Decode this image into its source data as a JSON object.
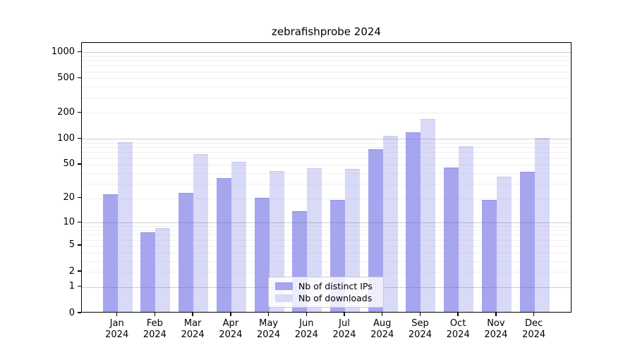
{
  "chart_data": {
    "type": "bar",
    "title": "zebrafishprobe 2024",
    "categories": [
      "Jan 2024",
      "Feb 2024",
      "Mar 2024",
      "Apr 2024",
      "May 2024",
      "Jun 2024",
      "Jul 2024",
      "Aug 2024",
      "Sep 2024",
      "Oct 2024",
      "Nov 2024",
      "Dec 2024"
    ],
    "series": [
      {
        "name": "Nb of distinct IPs",
        "color": "#a5a5f0",
        "values": [
          21,
          7,
          22,
          33,
          19,
          13,
          18,
          72,
          113,
          44,
          18,
          39
        ]
      },
      {
        "name": "Nb of downloads",
        "color": "#d9d9f8",
        "values": [
          87,
          8,
          63,
          51,
          40,
          43,
          42,
          102,
          162,
          78,
          34,
          97
        ]
      }
    ],
    "yscale": "log1p",
    "yticks": [
      0,
      1,
      2,
      5,
      10,
      20,
      50,
      100,
      200,
      500,
      1000
    ],
    "ylim": [
      0,
      1280
    ],
    "grid": "on",
    "major_gridlines": [
      1,
      10,
      100,
      1000
    ],
    "legend_position": "lower center"
  }
}
